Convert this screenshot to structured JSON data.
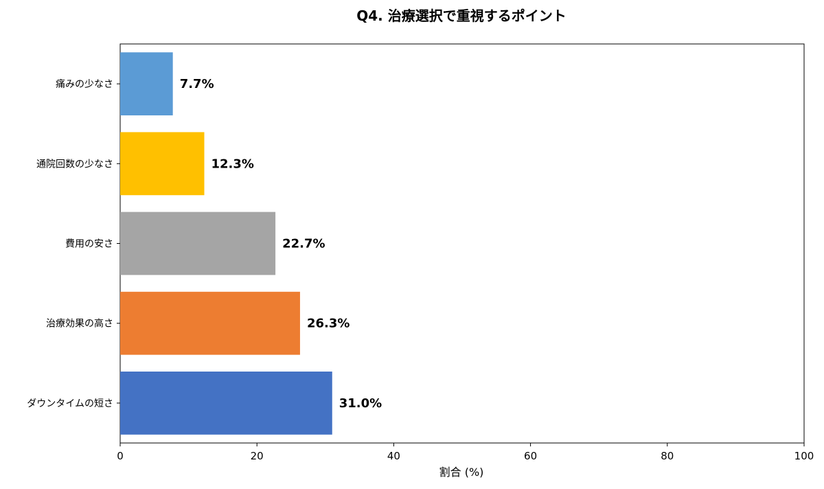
{
  "chart_data": {
    "type": "bar",
    "orientation": "horizontal",
    "title": "Q4. 治療選択で重視するポイント",
    "xlabel": "割合 (%)",
    "ylabel": "",
    "xlim": [
      0,
      100
    ],
    "xticks": [
      0,
      20,
      40,
      60,
      80,
      100
    ],
    "grid": false,
    "categories": [
      "痛みの少なさ",
      "通院回数の少なさ",
      "費用の安さ",
      "治療効果の高さ",
      "ダウンタイムの短さ"
    ],
    "values": [
      7.7,
      12.3,
      22.7,
      26.3,
      31.0
    ],
    "data_labels": [
      "7.7%",
      "12.3%",
      "22.7%",
      "26.3%",
      "31.0%"
    ],
    "colors": [
      "#5b9bd5",
      "#ffc000",
      "#a5a5a5",
      "#ed7d31",
      "#4472c4"
    ]
  }
}
